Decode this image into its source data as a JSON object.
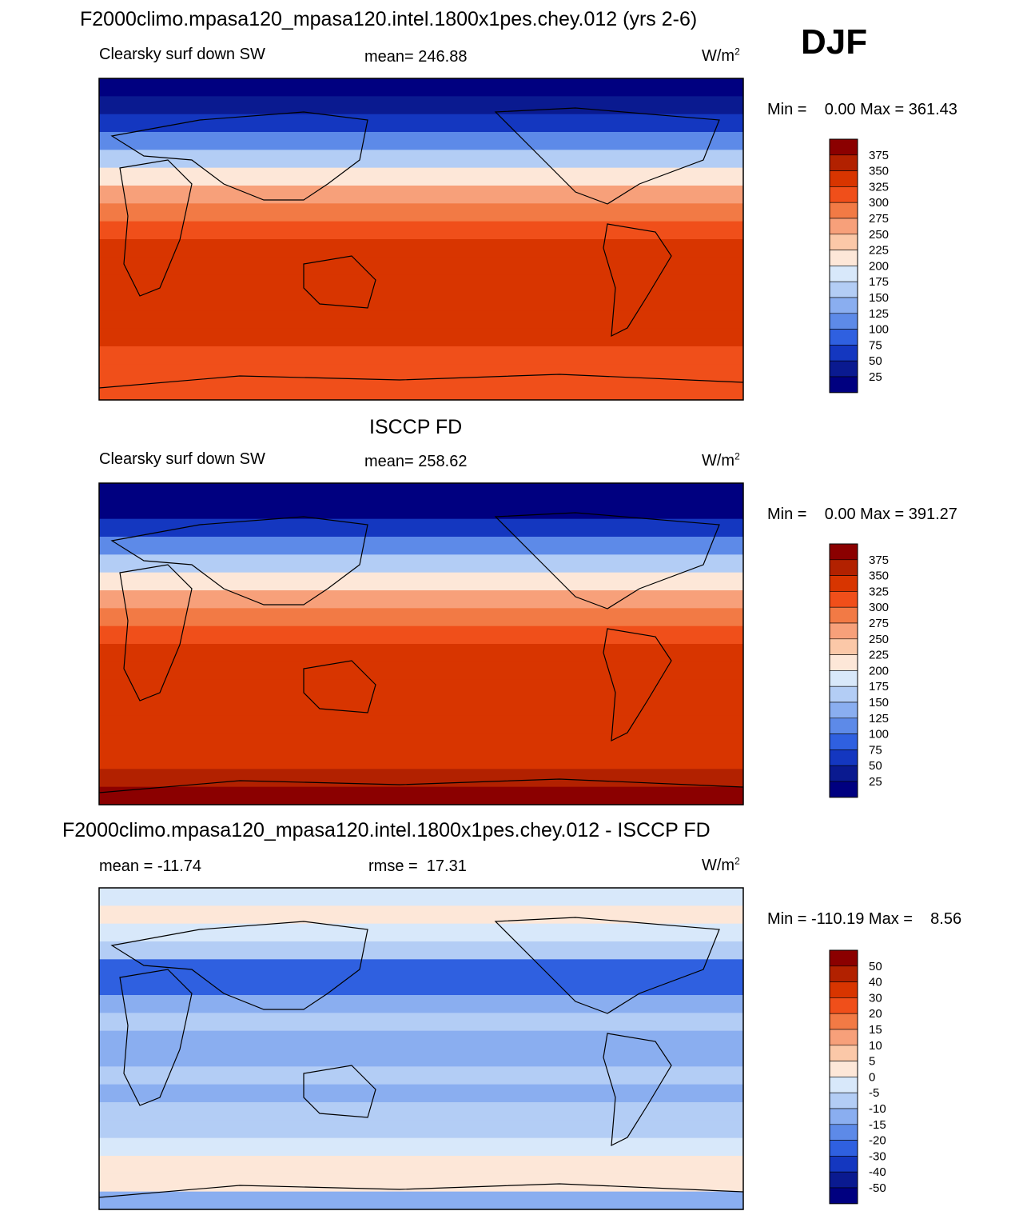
{
  "title_top": "F2000climo.mpasa120_mpasa120.intel.1800x1pes.chey.012 (yrs 2-6)",
  "season": "DJF",
  "title_mid": "ISCCP FD",
  "title_diff": "F2000climo.mpasa120_mpasa120.intel.1800x1pes.chey.012 - ISCCP FD",
  "chart_data": [
    {
      "type": "heatmap",
      "panel": "model",
      "left_label": "Clearsky surf down SW",
      "center_label": "mean= 246.88",
      "unit_text": "W/m",
      "unit_exp": "2",
      "minmax_text": "Min =    0.00 Max = 361.43",
      "mean": 246.88,
      "min": 0.0,
      "max": 361.43,
      "colorbar_levels": [
        "375",
        "350",
        "325",
        "300",
        "275",
        "250",
        "225",
        "200",
        "175",
        "150",
        "125",
        "100",
        "75",
        "50",
        "25"
      ],
      "colorbar_colors": [
        "#8b0000",
        "#b22100",
        "#d83500",
        "#f04f1a",
        "#f27a45",
        "#f7a07a",
        "#fbc8a8",
        "#fde7d8",
        "#d8e8fa",
        "#b3cdf5",
        "#8aaef0",
        "#5d8ae8",
        "#2f60e0",
        "#1437c0",
        "#0a1a90",
        "#000080"
      ],
      "zonal_profile": [
        0,
        25,
        60,
        110,
        165,
        215,
        255,
        290,
        315,
        330,
        340,
        345,
        340,
        330,
        325,
        320,
        318,
        318
      ]
    },
    {
      "type": "heatmap",
      "panel": "obs",
      "left_label": "Clearsky surf down SW",
      "center_label": "mean= 258.62",
      "unit_text": "W/m",
      "unit_exp": "2",
      "minmax_text": "Min =    0.00 Max = 391.27",
      "mean": 258.62,
      "min": 0.0,
      "max": 391.27,
      "colorbar_levels": [
        "375",
        "350",
        "325",
        "300",
        "275",
        "250",
        "225",
        "200",
        "175",
        "150",
        "125",
        "100",
        "75",
        "50",
        "25"
      ],
      "colorbar_colors": [
        "#8b0000",
        "#b22100",
        "#d83500",
        "#f04f1a",
        "#f27a45",
        "#f7a07a",
        "#fbc8a8",
        "#fde7d8",
        "#d8e8fa",
        "#b3cdf5",
        "#8aaef0",
        "#5d8ae8",
        "#2f60e0",
        "#1437c0",
        "#0a1a90",
        "#000080"
      ],
      "zonal_profile": [
        0,
        20,
        55,
        105,
        160,
        210,
        250,
        290,
        320,
        335,
        345,
        345,
        345,
        345,
        340,
        340,
        370,
        380
      ]
    },
    {
      "type": "heatmap",
      "panel": "difference",
      "left_label": "mean = -11.74",
      "center_label": "rmse =  17.31",
      "unit_text": "W/m",
      "unit_exp": "2",
      "minmax_text": "Min = -110.19 Max =    8.56",
      "mean": -11.74,
      "rmse": 17.31,
      "min": -110.19,
      "max": 8.56,
      "colorbar_levels": [
        "50",
        "40",
        "30",
        "20",
        "15",
        "10",
        "5",
        "0",
        "-5",
        "-10",
        "-15",
        "-20",
        "-30",
        "-40",
        "-50"
      ],
      "colorbar_colors": [
        "#8b0000",
        "#b22100",
        "#d83500",
        "#f04f1a",
        "#f27a45",
        "#f7a07a",
        "#fbc8a8",
        "#fde7d8",
        "#d8e8fa",
        "#b3cdf5",
        "#8aaef0",
        "#5d8ae8",
        "#2f60e0",
        "#1437c0",
        "#0a1a90",
        "#000080"
      ],
      "zonal_profile": [
        -3,
        2,
        -4,
        -8,
        -28,
        -22,
        -12,
        -10,
        -15,
        -14,
        -10,
        -12,
        -8,
        -8,
        -5,
        3,
        4,
        -12
      ]
    }
  ]
}
